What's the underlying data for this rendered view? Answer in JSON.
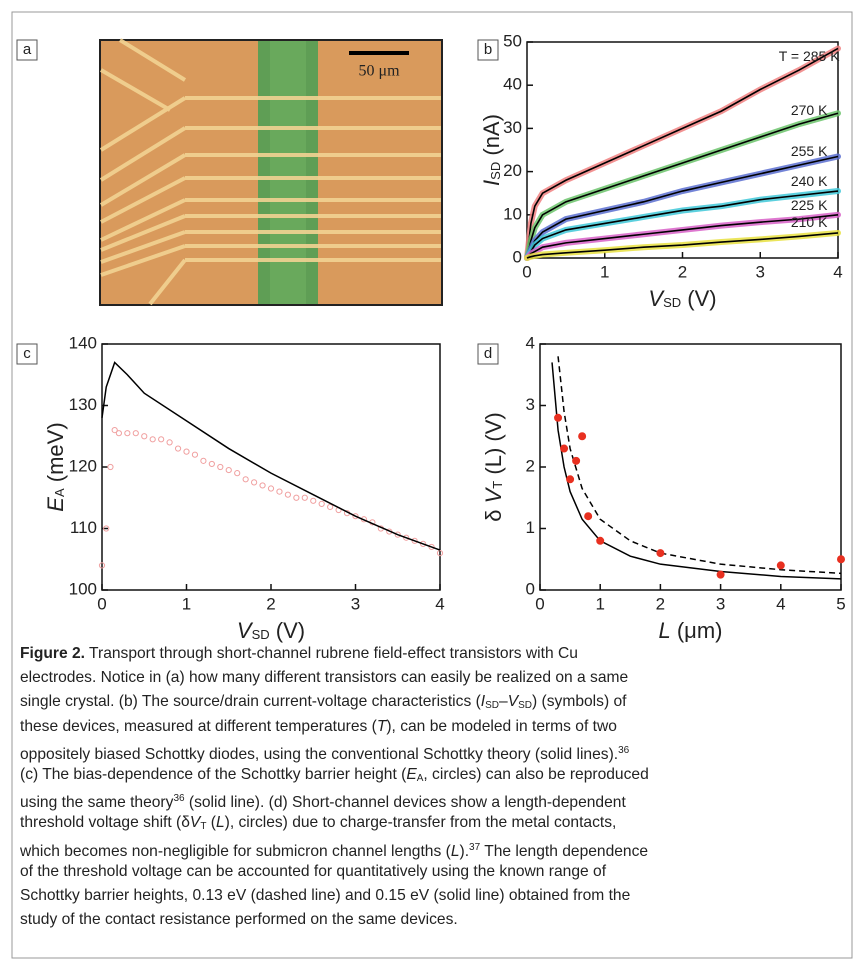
{
  "panel_a": {
    "label": "a",
    "scale_bar": "50 μm"
  },
  "chart_data": [
    {
      "type": "line",
      "label": "b",
      "xlabel": [
        {
          "text": "V",
          "style": "italic"
        },
        {
          "text": "SD",
          "style": "sub"
        },
        " (V)"
      ],
      "ylabel": [
        {
          "text": "I",
          "style": "italic"
        },
        {
          "text": "SD",
          "style": "sub"
        },
        " (nA)"
      ],
      "xlim": [
        0,
        4
      ],
      "ylim": [
        0,
        50
      ],
      "xticks": [
        0,
        1,
        2,
        3,
        4
      ],
      "yticks": [
        0,
        10,
        20,
        30,
        40,
        50
      ],
      "fit_color": "#000000",
      "x": [
        0,
        0.05,
        0.1,
        0.2,
        0.5,
        1,
        1.5,
        2,
        2.5,
        3,
        3.5,
        4
      ],
      "series": [
        {
          "name": "T = 285 K",
          "color": "#f08080",
          "values": [
            0,
            8,
            12,
            15,
            18,
            22,
            26,
            30,
            34,
            39,
            43.5,
            48.5
          ]
        },
        {
          "name": "270 K",
          "color": "#6cc46c",
          "values": [
            0,
            4,
            7,
            10,
            13,
            16,
            19,
            22,
            25,
            28,
            31,
            33.5
          ]
        },
        {
          "name": "255 K",
          "color": "#5a6fd0",
          "values": [
            0,
            2,
            4,
            6,
            9,
            11,
            13,
            15.5,
            17.5,
            19.5,
            21.5,
            23.5
          ]
        },
        {
          "name": "240 K",
          "color": "#40c8d8",
          "values": [
            0,
            1.5,
            3,
            4.5,
            6.5,
            8,
            9.5,
            11,
            12,
            13.5,
            14.5,
            15.5
          ]
        },
        {
          "name": "225 K",
          "color": "#d860c8",
          "values": [
            0,
            1,
            1.5,
            2.5,
            3.5,
            4.5,
            5.5,
            6.5,
            7.5,
            8.3,
            9,
            10
          ]
        },
        {
          "name": "210 K",
          "color": "#e8e040",
          "values": [
            0,
            0.3,
            0.5,
            0.8,
            1.2,
            1.8,
            2.5,
            3,
            3.7,
            4.3,
            5,
            5.8
          ]
        }
      ]
    },
    {
      "type": "line",
      "label": "c",
      "xlabel": [
        {
          "text": "V",
          "style": "italic"
        },
        {
          "text": "SD",
          "style": "sub"
        },
        " (V)"
      ],
      "ylabel": [
        {
          "text": "E",
          "style": "italic"
        },
        {
          "text": "A",
          "style": "sub"
        },
        " (meV)"
      ],
      "xlim": [
        0,
        4
      ],
      "ylim": [
        100,
        140
      ],
      "xticks": [
        0,
        1,
        2,
        3,
        4
      ],
      "yticks": [
        100,
        110,
        120,
        130,
        140
      ],
      "series": [
        {
          "type": "scatter",
          "color": "#f0a0a0",
          "x": [
            0,
            0.05,
            0.1,
            0.15,
            0.2,
            0.3,
            0.4,
            0.5,
            0.6,
            0.7,
            0.8,
            0.9,
            1.0,
            1.1,
            1.2,
            1.3,
            1.4,
            1.5,
            1.6,
            1.7,
            1.8,
            1.9,
            2.0,
            2.1,
            2.2,
            2.3,
            2.4,
            2.5,
            2.6,
            2.7,
            2.8,
            2.9,
            3.0,
            3.1,
            3.2,
            3.3,
            3.4,
            3.5,
            3.6,
            3.7,
            3.8,
            3.9,
            4.0
          ],
          "values": [
            104,
            110,
            120,
            126,
            125.5,
            125.5,
            125.5,
            125,
            124.5,
            124.5,
            124,
            123,
            122.5,
            122,
            121,
            120.5,
            120,
            119.5,
            119,
            118,
            117.5,
            117,
            116.5,
            116,
            115.5,
            115,
            115,
            114.5,
            114,
            113.5,
            113,
            112.5,
            112,
            111.5,
            111,
            110,
            109.5,
            109,
            108.5,
            108,
            107.5,
            107,
            106
          ]
        },
        {
          "type": "line",
          "color": "#000000",
          "x": [
            0,
            0.05,
            0.15,
            0.3,
            0.5,
            1,
            1.5,
            2,
            2.5,
            3,
            3.5,
            4
          ],
          "values": [
            128,
            133,
            137,
            135,
            132,
            127.5,
            123,
            119,
            115.5,
            112,
            109,
            106.5
          ]
        }
      ]
    },
    {
      "type": "line",
      "label": "d",
      "xlabel": [
        {
          "text": "L",
          "style": "italic"
        },
        " (μm)"
      ],
      "ylabel": [
        "δ ",
        {
          "text": "V",
          "style": "italic"
        },
        {
          "text": "T",
          "style": "sub"
        },
        " (L) (V)"
      ],
      "xlim": [
        0,
        5
      ],
      "ylim": [
        0,
        4
      ],
      "xticks": [
        0,
        1,
        2,
        3,
        4,
        5
      ],
      "yticks": [
        0,
        1,
        2,
        3,
        4
      ],
      "series": [
        {
          "type": "line",
          "color": "#000000",
          "x": [
            0.2,
            0.3,
            0.4,
            0.5,
            0.7,
            1,
            1.5,
            2,
            3,
            4,
            5
          ],
          "values": [
            3.7,
            2.6,
            2.0,
            1.6,
            1.15,
            0.8,
            0.55,
            0.42,
            0.3,
            0.22,
            0.18
          ]
        },
        {
          "type": "line",
          "color": "#000000",
          "dash": true,
          "x": [
            0.3,
            0.4,
            0.5,
            0.7,
            1,
            1.5,
            2,
            3,
            4,
            5
          ],
          "values": [
            3.8,
            2.9,
            2.3,
            1.65,
            1.15,
            0.8,
            0.6,
            0.42,
            0.33,
            0.27
          ]
        },
        {
          "type": "scatter",
          "color": "#e83020",
          "filled": true,
          "x": [
            0.3,
            0.4,
            0.5,
            0.6,
            0.7,
            0.8,
            1,
            2,
            3,
            4,
            5
          ],
          "values": [
            2.8,
            2.3,
            1.8,
            2.1,
            2.5,
            1.2,
            0.8,
            0.6,
            0.25,
            0.4,
            0.5
          ]
        }
      ]
    }
  ],
  "caption": {
    "lines": [
      [
        {
          "text": "Figure 2.",
          "style": "bold"
        },
        " Transport through short-channel rubrene field-effect transistors with Cu"
      ],
      [
        "electrodes. Notice in (a) how many different transistors can easily be realized on a same"
      ],
      [
        "single crystal. (b) The source/drain current-voltage characteristics (",
        {
          "text": "I",
          "style": "italic"
        },
        {
          "text": "SD",
          "style": "sub"
        },
        "–",
        {
          "text": "V",
          "style": "italic"
        },
        {
          "text": "SD",
          "style": "sub"
        },
        ") (symbols) of"
      ],
      [
        "these devices, measured at different temperatures (",
        {
          "text": "T",
          "style": "italic"
        },
        "), can be modeled in terms of two"
      ],
      [
        "oppositely biased Schottky diodes, using the conventional Schottky theory (solid lines).",
        {
          "text": "36",
          "style": "sup"
        }
      ],
      [
        "(c) The bias-dependence of the Schottky barrier height (",
        {
          "text": "E",
          "style": "italic"
        },
        {
          "text": "A",
          "style": "sub"
        },
        ", circles) can also be reproduced"
      ],
      [
        "using the same theory",
        {
          "text": "36",
          "style": "sup"
        },
        " (solid line). (d) Short-channel devices show a length-dependent"
      ],
      [
        "threshold voltage shift (δ",
        {
          "text": "V",
          "style": "italic"
        },
        {
          "text": "T",
          "style": "sub"
        },
        " (",
        {
          "text": "L",
          "style": "italic"
        },
        "), circles) due to charge-transfer from the metal contacts,"
      ],
      [
        "which becomes non-negligible for submicron channel lengths (",
        {
          "text": "L",
          "style": "italic"
        },
        ").",
        {
          "text": "37",
          "style": "sup"
        },
        " The length dependence"
      ],
      [
        "of the threshold voltage can be accounted for quantitatively using the known range of"
      ],
      [
        "Schottky barrier heights, 0.13 eV (dashed line) and 0.15 eV (solid line) obtained from the"
      ],
      [
        "study of the contact resistance performed on the same devices."
      ]
    ]
  }
}
